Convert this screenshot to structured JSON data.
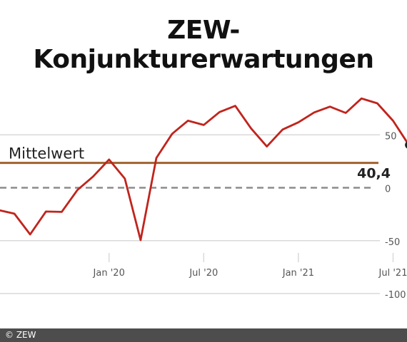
{
  "chart_data": {
    "type": "line",
    "title": "ZEW-Konjunkturerwartungen",
    "xlabel": "",
    "ylabel": "",
    "ylim": [
      -100,
      100
    ],
    "yticks": [
      50,
      0,
      -50,
      -100
    ],
    "ytick_labels": [
      "50",
      "0",
      "-50",
      "-100"
    ],
    "xticks": [
      "2020-01",
      "2020-07",
      "2021-01",
      "2021-07"
    ],
    "xtick_labels": [
      "Jan '20",
      "Jul '20",
      "Jan '21",
      "Jul '21"
    ],
    "grid": true,
    "series": [
      {
        "x": [
          "2019-06",
          "2019-07",
          "2019-08",
          "2019-09",
          "2019-10",
          "2019-11",
          "2019-12",
          "2020-01",
          "2020-02",
          "2020-03",
          "2020-04",
          "2020-05",
          "2020-06",
          "2020-07",
          "2020-08",
          "2020-09",
          "2020-10",
          "2020-11",
          "2020-12",
          "2021-01",
          "2021-02",
          "2021-03",
          "2021-04",
          "2021-05",
          "2021-06",
          "2021-07",
          "2021-08"
        ],
        "values": [
          -21.1,
          -24.5,
          -44.1,
          -22.5,
          -22.8,
          -2.1,
          10.7,
          26.7,
          8.7,
          -49.5,
          28.2,
          51.0,
          63.4,
          59.3,
          71.5,
          77.4,
          56.1,
          39.0,
          55.0,
          61.8,
          71.2,
          76.6,
          70.7,
          84.4,
          79.8,
          63.3,
          40.4
        ],
        "end_label": "40,4"
      }
    ],
    "reference_lines": {
      "mittelwert": {
        "label": "Mittelwert",
        "value": 23.5
      },
      "zero": {
        "value": 0
      }
    },
    "colors": {
      "line": "#c0241c",
      "mittelwert": "#a0622c",
      "zero_line": "#8c8c8c",
      "grid": "#d9d9d9",
      "tick_label": "#555555",
      "end_marker": "#222222"
    }
  },
  "footer": {
    "credit": "© ZEW"
  }
}
